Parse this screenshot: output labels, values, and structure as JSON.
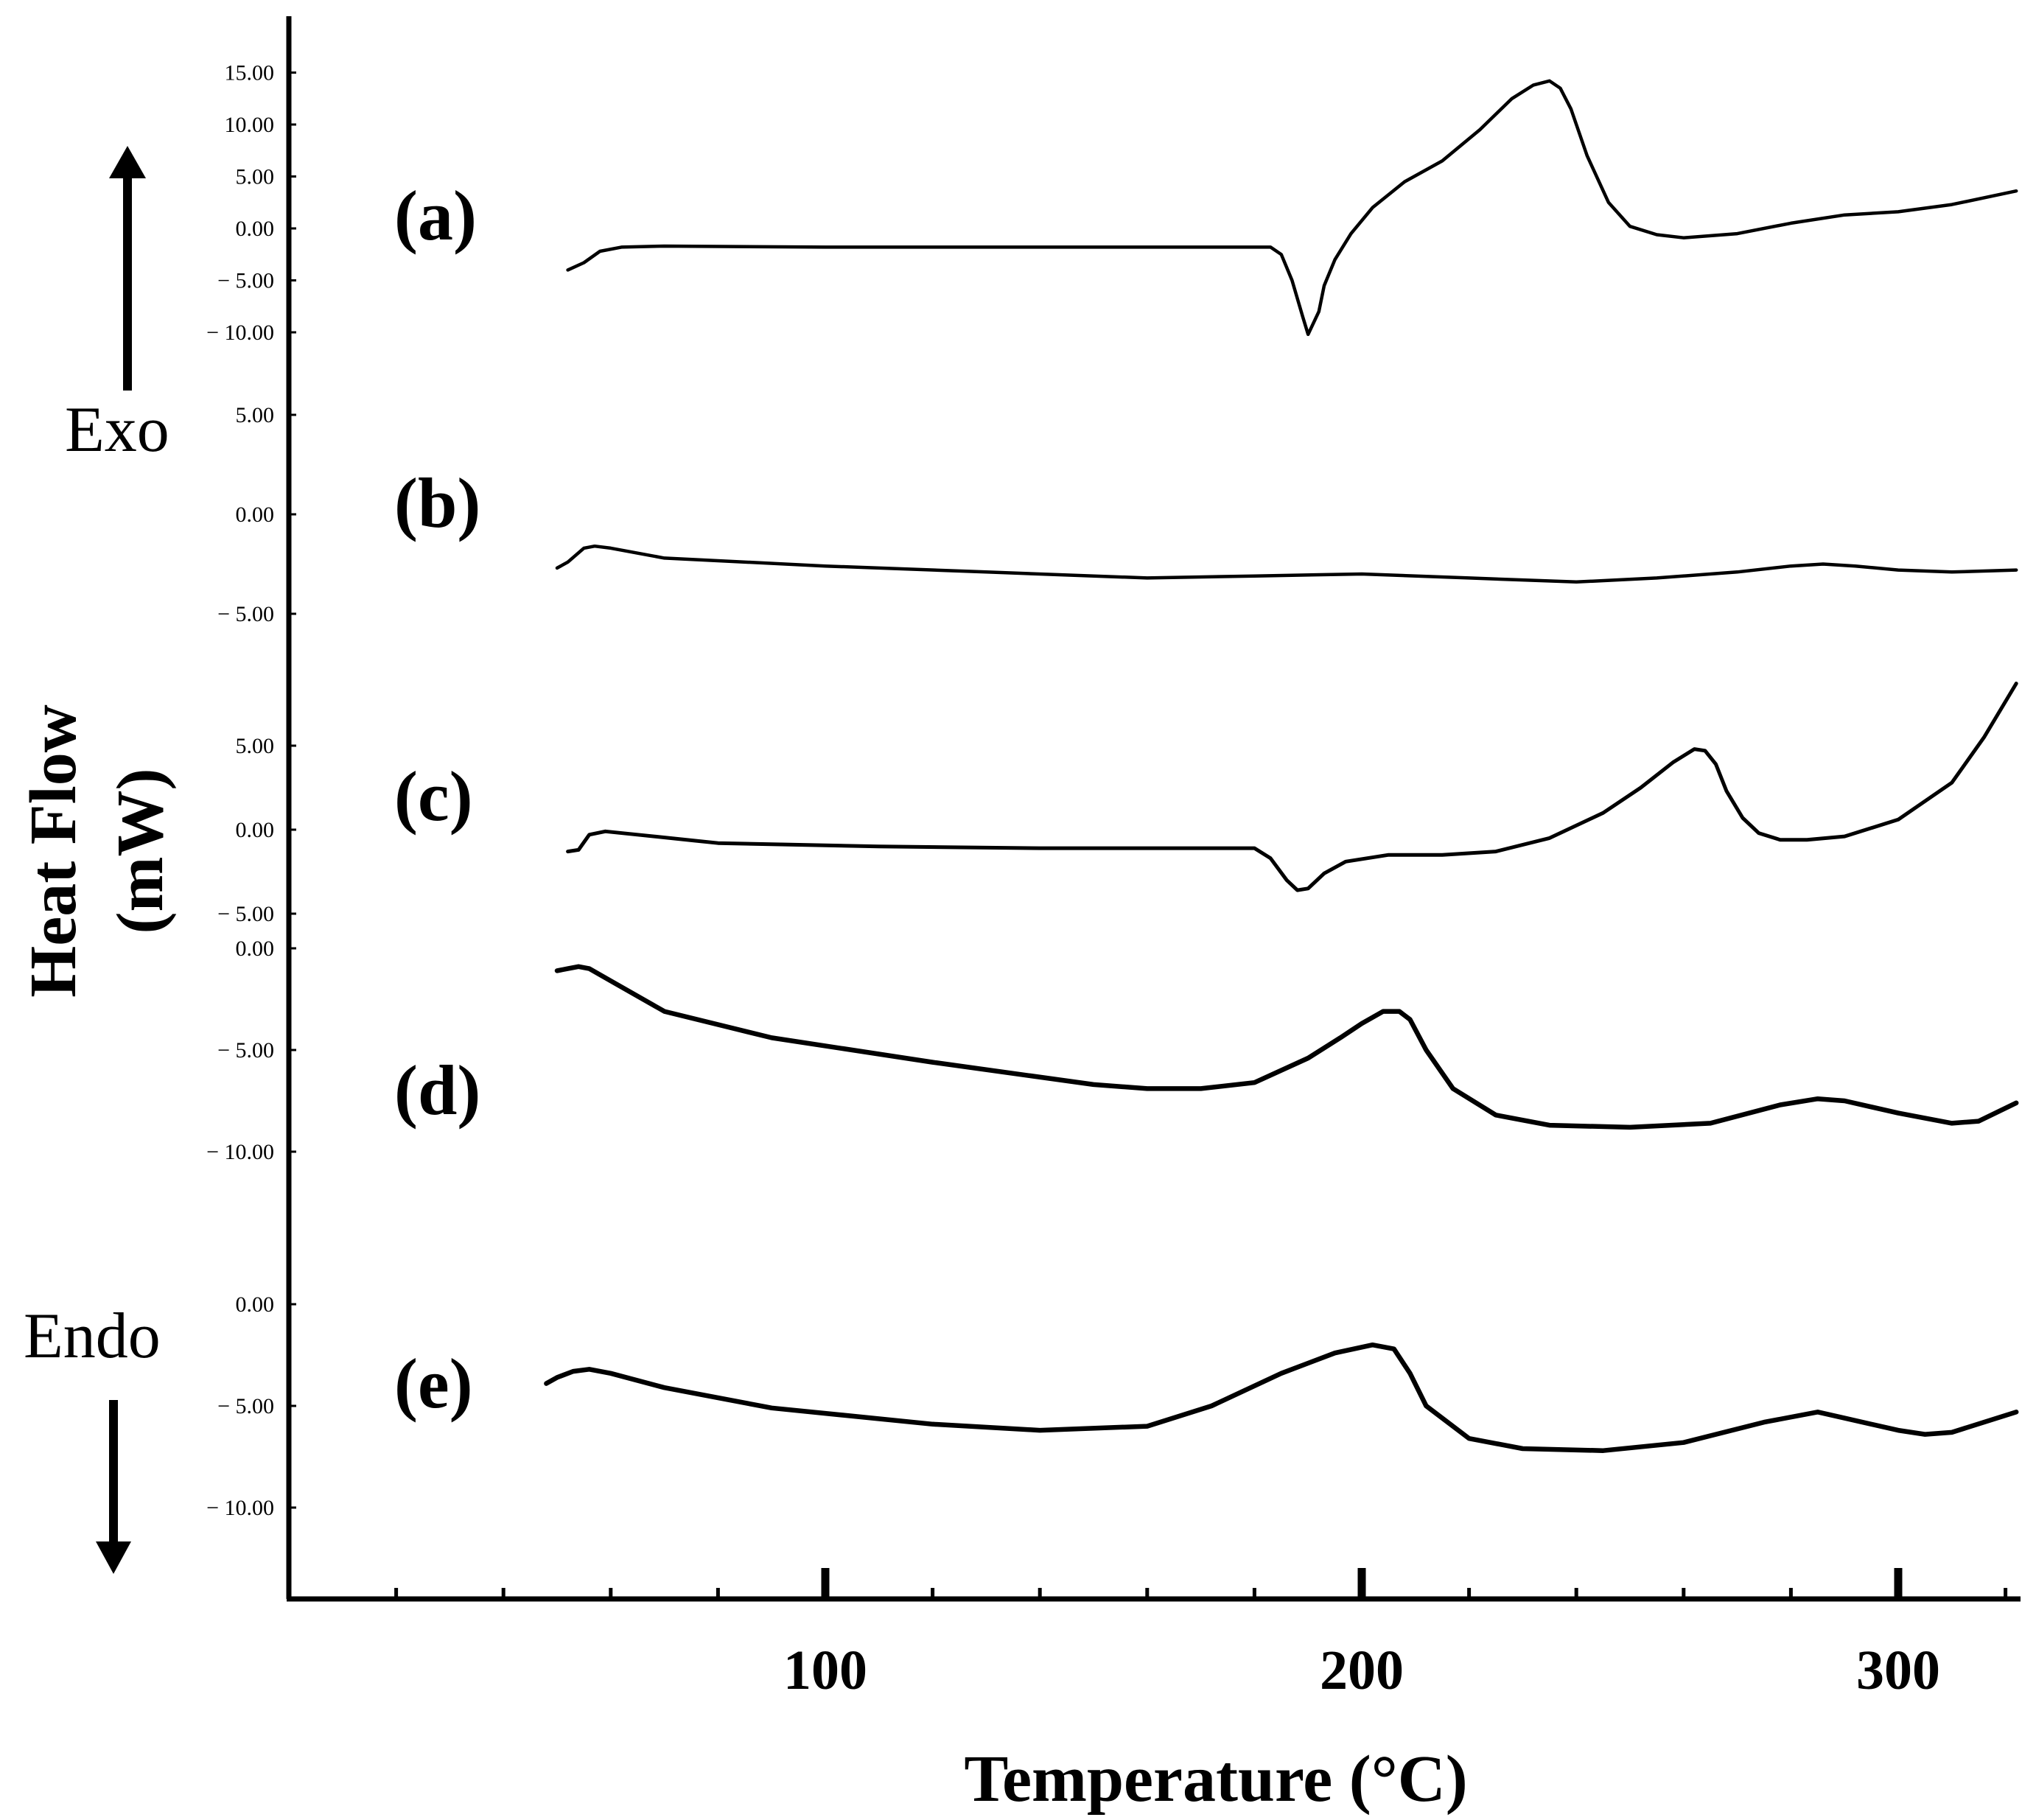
{
  "chart_data": {
    "type": "line",
    "title": "",
    "xlabel": "Temperature (°C)",
    "ylabel_line1": "Heat Flow",
    "ylabel_line2": "(mW)",
    "xlim": [
      0,
      322
    ],
    "xticks": [
      100,
      200,
      300
    ],
    "xtick_labels": [
      "100",
      "200",
      "300"
    ],
    "exo_label": "Exo",
    "endo_label": "Endo",
    "grid": false,
    "series": [
      {
        "name": "(a)",
        "yticks": [
          15,
          10,
          5,
          0,
          -5,
          -10
        ],
        "ytick_labels": [
          "15.00",
          "10.00",
          "5.00",
          "0.00",
          "− 5.00",
          "− 10.00"
        ],
        "x": [
          52,
          55,
          58,
          62,
          70,
          100,
          150,
          183,
          185,
          187,
          189,
          190,
          192,
          193,
          195,
          198,
          202,
          208,
          215,
          222,
          228,
          232,
          235,
          237,
          239,
          242,
          246,
          250,
          255,
          260,
          270,
          280,
          290,
          300,
          310,
          322
        ],
        "y": [
          -4.0,
          -3.3,
          -2.2,
          -1.8,
          -1.7,
          -1.8,
          -1.8,
          -1.8,
          -2.5,
          -5.0,
          -8.5,
          -10.2,
          -8.0,
          -5.5,
          -3.0,
          -0.5,
          2.0,
          4.5,
          6.5,
          9.5,
          12.5,
          13.8,
          14.2,
          13.5,
          11.5,
          7.0,
          2.5,
          0.2,
          -0.6,
          -0.9,
          -0.5,
          0.5,
          1.3,
          1.6,
          2.3,
          3.6
        ]
      },
      {
        "name": "(b)",
        "yticks": [
          5,
          0,
          -5
        ],
        "ytick_labels": [
          "5.00",
          "0.00",
          "− 5.00"
        ],
        "x": [
          50,
          52,
          55,
          57,
          60,
          70,
          100,
          130,
          160,
          180,
          200,
          220,
          240,
          255,
          270,
          280,
          286,
          292,
          300,
          310,
          322
        ],
        "y": [
          -2.7,
          -2.4,
          -1.7,
          -1.6,
          -1.7,
          -2.2,
          -2.6,
          -2.9,
          -3.2,
          -3.1,
          -3.0,
          -3.2,
          -3.4,
          -3.2,
          -2.9,
          -2.6,
          -2.5,
          -2.6,
          -2.8,
          -2.9,
          -2.8
        ]
      },
      {
        "name": "(c)",
        "yticks": [
          5,
          0,
          -5
        ],
        "ytick_labels": [
          "5.00",
          "0.00",
          "− 5.00"
        ],
        "x": [
          52,
          54,
          56,
          59,
          65,
          80,
          110,
          140,
          170,
          180,
          183,
          186,
          188,
          190,
          193,
          197,
          205,
          215,
          225,
          235,
          245,
          252,
          258,
          262,
          264,
          266,
          268,
          271,
          274,
          278,
          283,
          290,
          300,
          310,
          316,
          322
        ],
        "y": [
          -1.3,
          -1.2,
          -0.3,
          -0.1,
          -0.3,
          -0.8,
          -1.0,
          -1.1,
          -1.1,
          -1.1,
          -1.7,
          -3.0,
          -3.6,
          -3.5,
          -2.6,
          -1.9,
          -1.5,
          -1.5,
          -1.3,
          -0.5,
          1.0,
          2.5,
          4.0,
          4.8,
          4.7,
          3.9,
          2.3,
          0.7,
          -0.2,
          -0.6,
          -0.6,
          -0.4,
          0.6,
          2.8,
          5.5,
          8.7
        ]
      },
      {
        "name": "(d)",
        "yticks": [
          0,
          -5,
          -10
        ],
        "ytick_labels": [
          "0.00",
          "− 5.00",
          "− 10.00"
        ],
        "x": [
          50,
          52,
          54,
          56,
          60,
          70,
          90,
          120,
          150,
          160,
          170,
          180,
          190,
          196,
          200,
          204,
          207,
          209,
          212,
          217,
          225,
          235,
          250,
          265,
          278,
          285,
          290,
          300,
          310,
          315,
          322
        ],
        "y": [
          -1.1,
          -1.0,
          -0.9,
          -1.0,
          -1.6,
          -3.1,
          -4.4,
          -5.6,
          -6.7,
          -6.9,
          -6.9,
          -6.6,
          -5.4,
          -4.4,
          -3.7,
          -3.1,
          -3.1,
          -3.5,
          -5.0,
          -6.9,
          -8.2,
          -8.7,
          -8.8,
          -8.6,
          -7.7,
          -7.4,
          -7.5,
          -8.1,
          -8.6,
          -8.5,
          -7.6
        ]
      },
      {
        "name": "(e)",
        "yticks": [
          0,
          -5,
          -10
        ],
        "ytick_labels": [
          "0.00",
          "− 5.00",
          "− 10.00"
        ],
        "x": [
          48,
          50,
          53,
          56,
          60,
          70,
          90,
          120,
          140,
          160,
          172,
          185,
          195,
          202,
          206,
          209,
          212,
          220,
          230,
          245,
          260,
          275,
          285,
          290,
          300,
          305,
          310,
          322
        ],
        "y": [
          -3.9,
          -3.6,
          -3.3,
          -3.2,
          -3.4,
          -4.1,
          -5.1,
          -5.9,
          -6.2,
          -6.0,
          -5.0,
          -3.4,
          -2.4,
          -2.0,
          -2.2,
          -3.4,
          -5.0,
          -6.6,
          -7.1,
          -7.2,
          -6.8,
          -5.8,
          -5.3,
          -5.6,
          -6.2,
          -6.4,
          -6.3,
          -5.3
        ]
      }
    ]
  }
}
